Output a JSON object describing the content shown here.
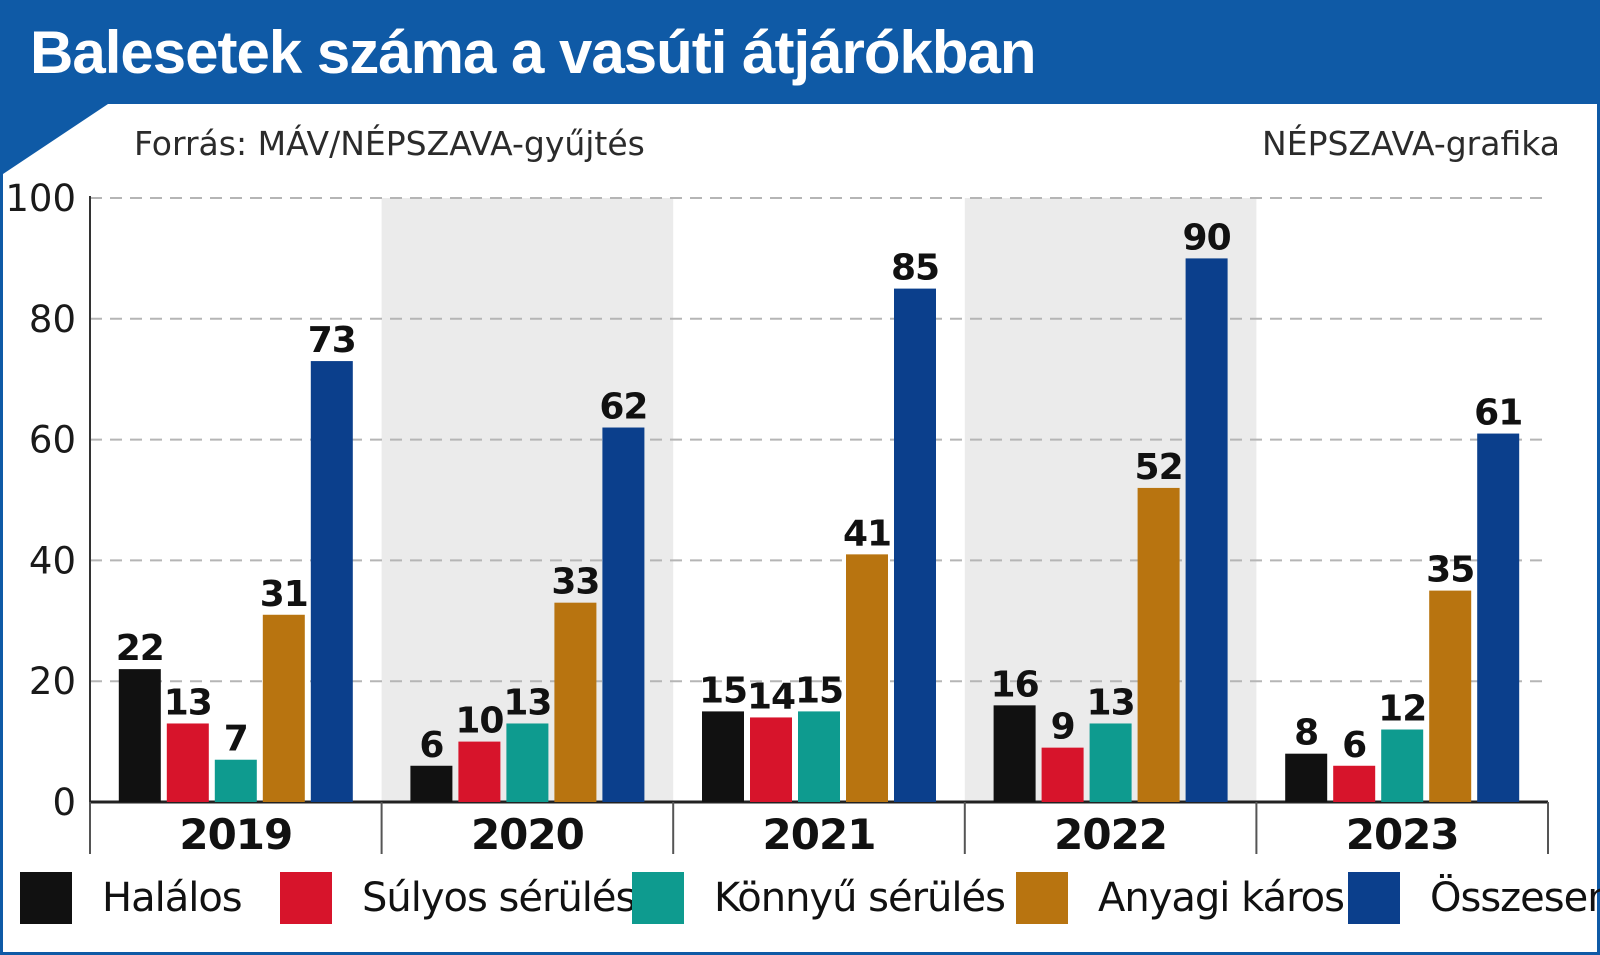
{
  "header": {
    "title": "Balesetek száma a vasúti átjárókban",
    "source": "Forrás: MÁV/NÉPSZAVA-gyűjtés",
    "credit": "NÉPSZAVA-grafika"
  },
  "colors": {
    "brand_blue": "#0f5aa6",
    "band_grey": "#ebebeb"
  },
  "chart_data": {
    "type": "bar",
    "title": "Balesetek száma a vasúti átjárókban",
    "categories": [
      "2019",
      "2020",
      "2021",
      "2022",
      "2023"
    ],
    "series": [
      {
        "name": "Halálos",
        "color": "#111111",
        "values": [
          22,
          6,
          15,
          16,
          8
        ]
      },
      {
        "name": "Súlyos sérülés",
        "color": "#d7142b",
        "values": [
          13,
          10,
          14,
          9,
          6
        ]
      },
      {
        "name": "Könnyű sérülés",
        "color": "#0e9b8f",
        "values": [
          7,
          13,
          15,
          13,
          12
        ]
      },
      {
        "name": "Anyagi káros",
        "color": "#b87410",
        "values": [
          31,
          33,
          41,
          52,
          35
        ]
      },
      {
        "name": "Összesen",
        "color": "#0b3f8c",
        "values": [
          73,
          62,
          85,
          90,
          61
        ]
      }
    ],
    "ylim": [
      0,
      100
    ],
    "yticks": [
      0,
      20,
      40,
      60,
      80,
      100
    ],
    "grid": true,
    "legend_position": "bottom",
    "data_labels": true
  }
}
